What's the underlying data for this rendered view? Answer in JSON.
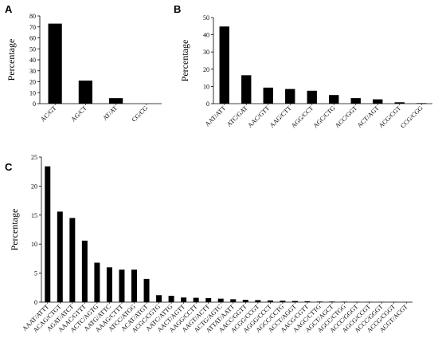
{
  "chart_data": [
    {
      "panel": "A",
      "type": "bar",
      "ylabel": "Percentage",
      "xlabel": "",
      "ylim": [
        0,
        80
      ],
      "yticks": [
        0,
        10,
        20,
        30,
        40,
        50,
        60,
        70,
        80
      ],
      "categories": [
        "AC/GT",
        "AG/CT",
        "AT/AT",
        "CG/CG"
      ],
      "values": [
        73,
        21,
        5,
        0
      ]
    },
    {
      "panel": "B",
      "type": "bar",
      "ylabel": "Percentage",
      "xlabel": "",
      "ylim": [
        0,
        50
      ],
      "yticks": [
        0,
        10,
        20,
        30,
        40,
        50
      ],
      "categories": [
        "AAT/ATT",
        "ATC/GAT",
        "AAC/GTT",
        "AAG/CTT",
        "AGG/CCT",
        "AGC/CTG",
        "ACC/GGT",
        "ACT/AGT",
        "ACG/CGT",
        "CCG/CGG"
      ],
      "values": [
        44.8,
        16.5,
        9.3,
        8.5,
        7.5,
        5.0,
        3.2,
        2.5,
        0.8,
        0.3
      ]
    },
    {
      "panel": "C",
      "type": "bar",
      "ylabel": "Percentage",
      "xlabel": "",
      "ylim": [
        0,
        25
      ],
      "yticks": [
        0,
        5,
        10,
        15,
        20,
        25
      ],
      "categories": [
        "AAAT/ATTT",
        "ACAG/CTGT",
        "AGAT/ATCT",
        "AAAC/GTTT",
        "ACTC/AGTG",
        "AATG/ATTC",
        "AAAG/CTTT",
        "ATCC/ATGG",
        "ACAT/ATGT",
        "ACGC/CGTG",
        "AATC/ATTG",
        "AACT/AGTT",
        "AAGG/CCTT",
        "AAGT/ACTT",
        "ACTG/AGTC",
        "ATTAT/AATT",
        "AACC/GGTT",
        "ACGG/CCGT",
        "AGGG/CCCT",
        "AGCC/CCTG",
        "ACCT/AGGT",
        "AACG/CGTT",
        "AAGC/CTTG",
        "AGCT/AGCT",
        "AGCC/CTGG",
        "ACCC/GGGT",
        "AGCG/CCGT",
        "ACCC/GGGT",
        "ACCG/CGGT",
        "ACGT/ACGT"
      ],
      "values": [
        23.4,
        15.6,
        14.5,
        10.6,
        6.8,
        6.0,
        5.6,
        5.6,
        4.0,
        1.2,
        1.1,
        0.8,
        0.75,
        0.7,
        0.6,
        0.5,
        0.4,
        0.35,
        0.3,
        0.25,
        0.2,
        0.15,
        0.1,
        0.1,
        0.08,
        0.06,
        0.05,
        0.04,
        0.03,
        0.02
      ]
    }
  ]
}
